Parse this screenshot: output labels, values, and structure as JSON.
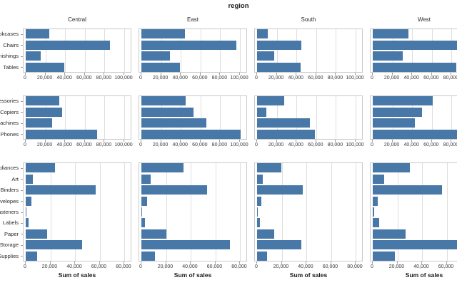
{
  "chart_data": {
    "type": "bar",
    "orientation": "horizontal",
    "facet_title": "region",
    "xlabel": "Sum of sales",
    "bar_color": "#4878a8",
    "grid_color": "#dedede",
    "panel_border_color": "#c9c9c9",
    "legend": "none",
    "columns": [
      "Central",
      "East",
      "South",
      "West"
    ],
    "rows": [
      {
        "group": "furniture-subcategories",
        "categories": [
          "Bookcases",
          "Chairs",
          "Furnishings",
          "Tables"
        ],
        "xmax": 100000,
        "ticks": [
          0,
          20000,
          40000,
          60000,
          80000,
          100000
        ],
        "values": {
          "Central": [
            24157,
            85231,
            15254,
            39155
          ],
          "East": [
            43819,
            96261,
            29071,
            39140
          ],
          "South": [
            10899,
            45176,
            17307,
            43916
          ],
          "West": [
            36004,
            101781,
            30073,
            84755
          ]
        }
      },
      {
        "group": "technology-subcategories",
        "categories": [
          "Accessories",
          "Copiers",
          "Machines",
          "Phones"
        ],
        "xmax": 100000,
        "ticks": [
          0,
          20000,
          40000,
          60000,
          80000,
          100000
        ],
        "values": {
          "Central": [
            33956,
            37260,
            26797,
            72403
          ],
          "East": [
            45033,
            53219,
            66106,
            100615
          ],
          "South": [
            27277,
            9300,
            53891,
            58304
          ],
          "West": [
            61114,
            49749,
            42444,
            98684
          ]
        }
      },
      {
        "group": "office-supplies-subcategories",
        "categories": [
          "Appliances",
          "Art",
          "Binders",
          "Envelopes",
          "Fasteners",
          "Labels",
          "Paper",
          "Storage",
          "Supplies"
        ],
        "xmax": 80000,
        "ticks": [
          0,
          20000,
          40000,
          60000,
          80000
        ],
        "values": {
          "Central": [
            23582,
            5765,
            56923,
            4637,
            778,
            2451,
            17492,
            45930,
            9467
          ],
          "East": [
            34188,
            7486,
            53498,
            4375,
            819,
            2603,
            20172,
            71613,
            10760
          ],
          "South": [
            19525,
            4655,
            37030,
            3345,
            503,
            2353,
            14151,
            35768,
            8318
          ],
          "West": [
            30236,
            9212,
            55961,
            4118,
            923,
            5079,
            26664,
            70533,
            18127
          ]
        }
      }
    ]
  }
}
